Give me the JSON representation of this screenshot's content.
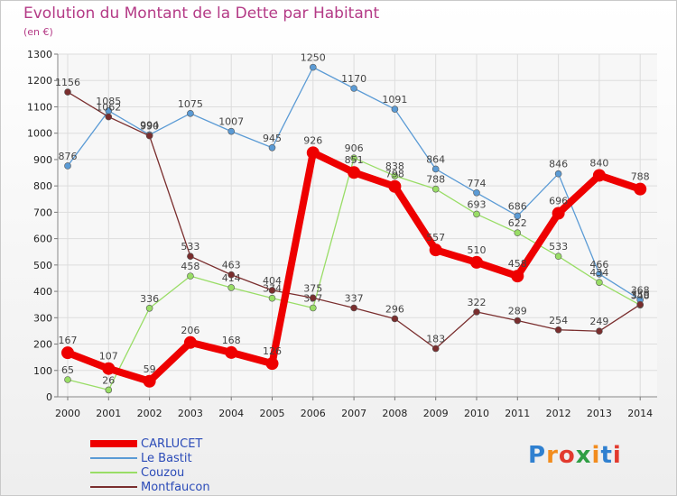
{
  "chart_data": {
    "type": "line",
    "title": "Evolution du Montant de la Dette par Habitant",
    "unit_label": "(en €)",
    "x": [
      "2000",
      "2001",
      "2002",
      "2003",
      "2004",
      "2005",
      "2006",
      "2007",
      "2008",
      "2009",
      "2010",
      "2011",
      "2012",
      "2013",
      "2014"
    ],
    "ylim": [
      0,
      1300
    ],
    "yticks": [
      0,
      100,
      200,
      300,
      400,
      500,
      600,
      700,
      800,
      900,
      1000,
      1100,
      1200,
      1300
    ],
    "grid": true,
    "legend_position": "bottom-left",
    "series": [
      {
        "name": "CARLUCET",
        "color": "#ee0000",
        "values": [
          167,
          107,
          59,
          206,
          168,
          126,
          926,
          851,
          798,
          557,
          510,
          458,
          696,
          840,
          788
        ]
      },
      {
        "name": "Le Bastit",
        "color": "#5b9bd5",
        "values": [
          876,
          1085,
          994,
          1075,
          1007,
          945,
          1250,
          1170,
          1091,
          864,
          774,
          686,
          846,
          466,
          368
        ]
      },
      {
        "name": "Couzou",
        "color": "#99dd66",
        "values": [
          65,
          26,
          336,
          458,
          414,
          374,
          337,
          906,
          838,
          788,
          693,
          622,
          533,
          434,
          348
        ]
      },
      {
        "name": "Montfaucon",
        "color": "#7a2e2e",
        "values": [
          1156,
          1062,
          990,
          533,
          463,
          404,
          375,
          337,
          296,
          183,
          322,
          289,
          254,
          249,
          350
        ]
      }
    ]
  },
  "logo": {
    "text": "Proxiti",
    "letters": [
      "P",
      "r",
      "o",
      "x",
      "i",
      "t",
      "i"
    ],
    "colors": [
      "#2f80d0",
      "#f28c1e",
      "#e23a2e",
      "#2f9e44",
      "#f28c1e",
      "#2f80d0",
      "#e23a2e"
    ]
  }
}
